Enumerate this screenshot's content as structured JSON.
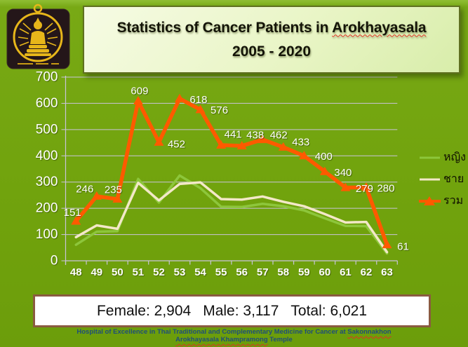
{
  "header": {
    "title_prefix": "Statistics of Cancer Patients in ",
    "title_underlined": "Arokhayasala",
    "title_line2": "2005 - 2020"
  },
  "legend": {
    "female_label": "หญิง",
    "male_label": "ชาย",
    "total_label": "รวม"
  },
  "summary": {
    "female_label": "Female:",
    "female_value": "2,904",
    "male_label": "Male:",
    "male_value": "3,117",
    "total_label": "Total:",
    "total_value": "6,021"
  },
  "footer": {
    "line1_prefix": "Hospital of Excellence in Thai Traditional and Complementary Medicine for Cancer at ",
    "line1_underlined": "Sakonnakhon",
    "line2_underlined": "Arokhayasala Khampramong",
    "line2_suffix": " Temple"
  },
  "chart_data": {
    "type": "line",
    "title": "Statistics of Cancer Patients in Arokhayasala 2005 - 2020",
    "categories": [
      "48",
      "49",
      "50",
      "51",
      "52",
      "53",
      "54",
      "55",
      "56",
      "57",
      "58",
      "59",
      "60",
      "61",
      "62",
      "63"
    ],
    "series": [
      {
        "name": "หญิง",
        "name_en": "female",
        "color": "#8dc63b",
        "marker": "none",
        "data_labels": false,
        "values": [
          61,
          111,
          113,
          312,
          222,
          325,
          277,
          206,
          205,
          217,
          208,
          192,
          162,
          133,
          132,
          28
        ]
      },
      {
        "name": "ชาย",
        "name_en": "male",
        "color": "#f3e8c8",
        "marker": "none",
        "data_labels": false,
        "values": [
          90,
          135,
          122,
          297,
          230,
          293,
          299,
          235,
          233,
          245,
          225,
          208,
          178,
          146,
          148,
          33
        ]
      },
      {
        "name": "รวม",
        "name_en": "total",
        "color": "#ff5a00",
        "marker": "triangle",
        "data_labels": true,
        "values": [
          151,
          246,
          235,
          609,
          452,
          618,
          576,
          441,
          438,
          462,
          433,
          400,
          340,
          279,
          280,
          61
        ]
      }
    ],
    "ylim": [
      0,
      700
    ],
    "ytick_step": 100,
    "yticks": [
      "0",
      "100",
      "200",
      "300",
      "400",
      "500",
      "600",
      "700"
    ],
    "grid": true,
    "grid_color": "#c9c4da",
    "axis_text_color": "#ffffff",
    "data_label_color": "#ffffff",
    "legend_position": "right"
  }
}
